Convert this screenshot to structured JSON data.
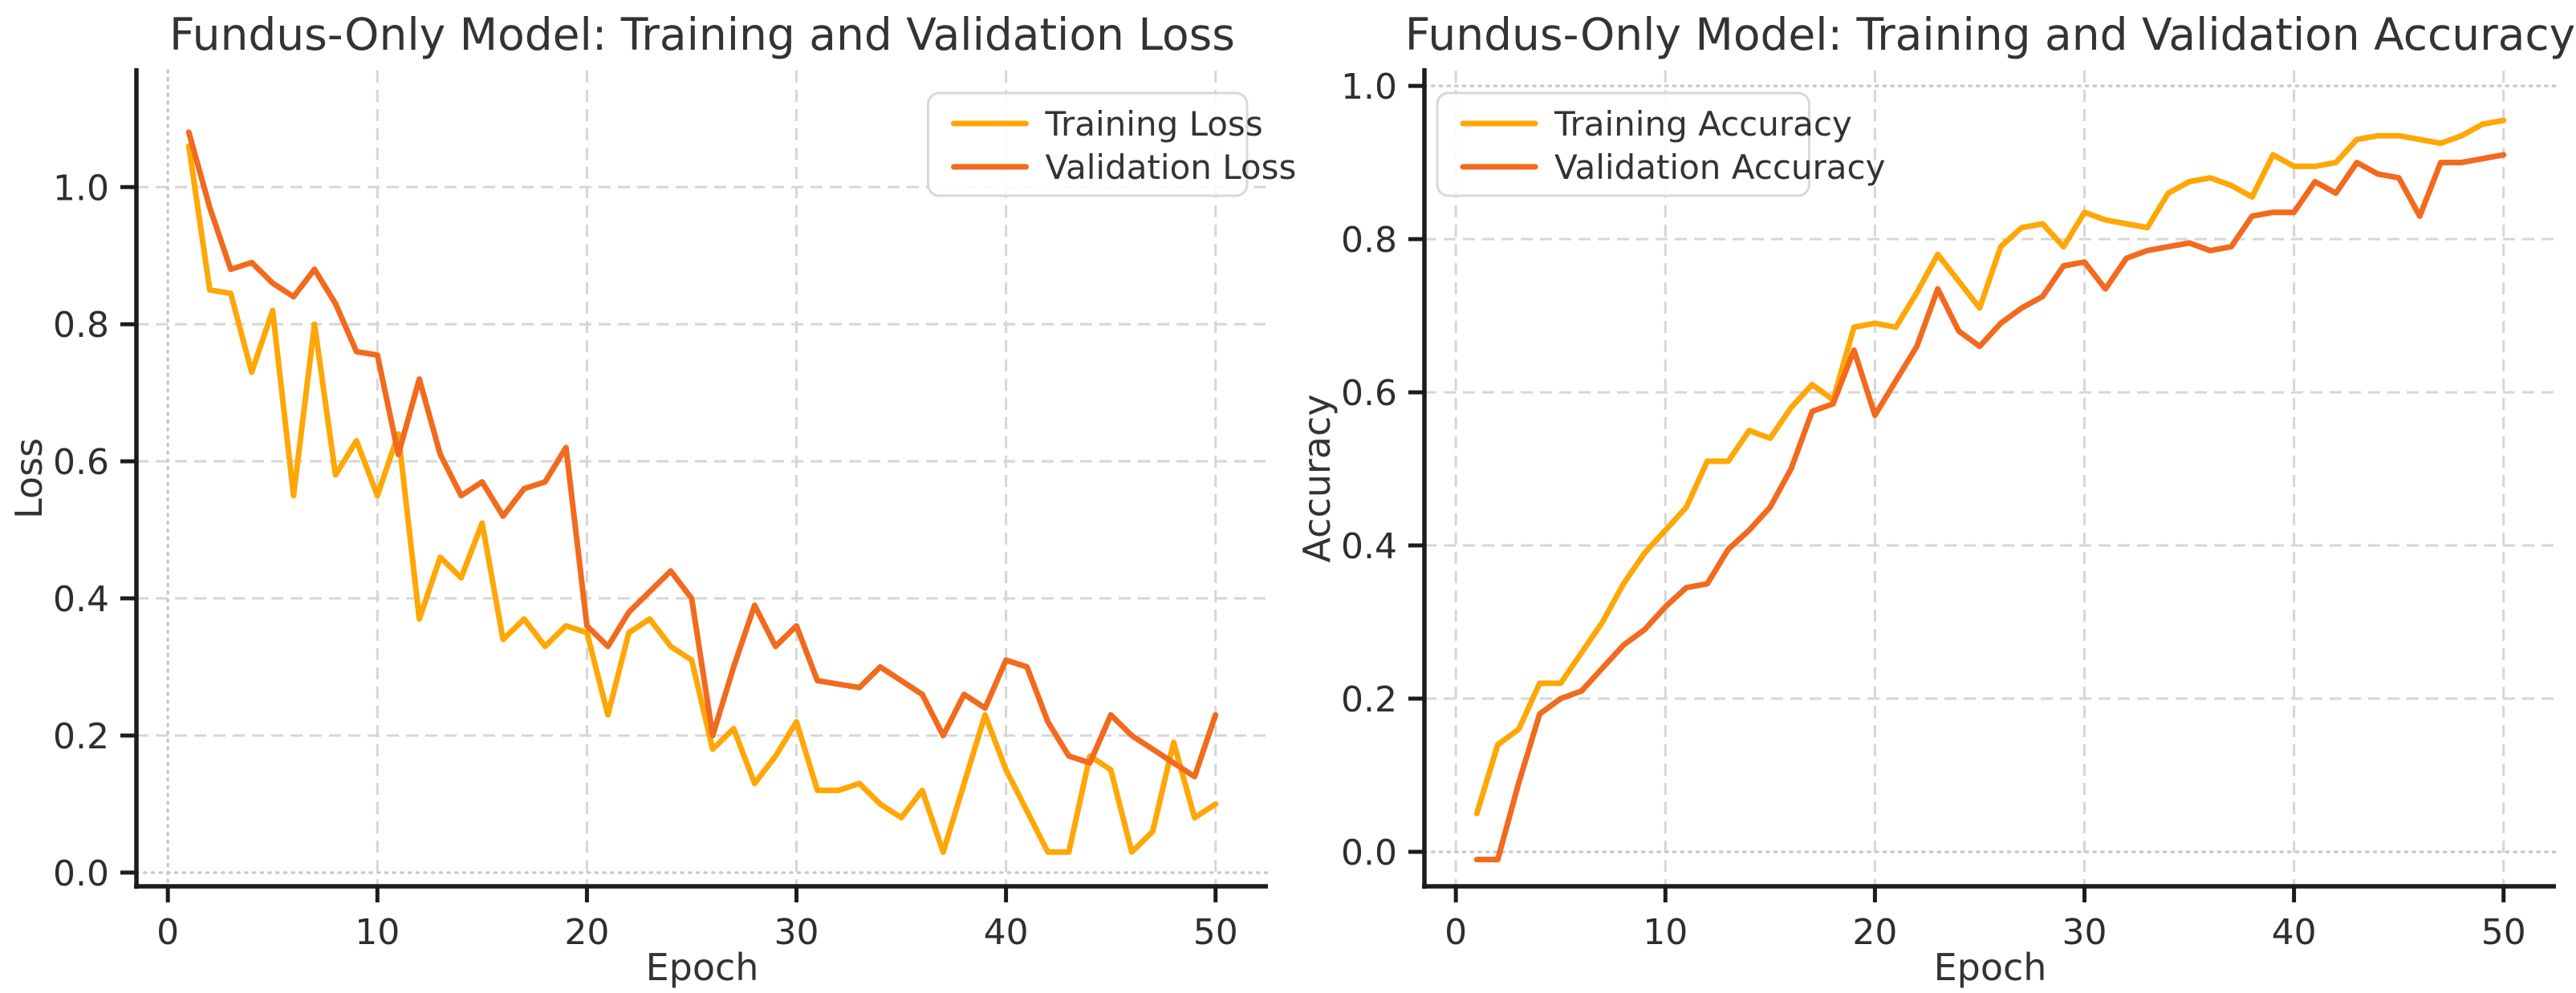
{
  "figure": {
    "background": "#ffffff"
  },
  "style": {
    "training_color": "#FFA707",
    "validation_color": "#F26A1E",
    "grid_color": "#d6d6d6",
    "guide_color": "#c9c9c9",
    "spine_color": "#1c1c1c",
    "text_color": "#333333",
    "tick_text_color": "#2e2e2e",
    "legend_border": "#d8d8d8",
    "legend_fill": "rgba(255,255,255,0.88)"
  },
  "chart_data": [
    {
      "type": "line",
      "title": "Fundus-Only Model: Training and Validation Loss",
      "xlabel": "Epoch",
      "ylabel": "Loss",
      "x_start": 1,
      "xlim": [
        -1.5,
        52.5
      ],
      "ylim": [
        -0.02,
        1.17
      ],
      "xticks": [
        0,
        10,
        20,
        30,
        40,
        50
      ],
      "xtick_labels": [
        "0",
        "10",
        "20",
        "30",
        "40",
        "50"
      ],
      "yticks": [
        0.0,
        0.2,
        0.4,
        0.6,
        0.8,
        1.0
      ],
      "ytick_labels": [
        "0.0",
        "0.2",
        "0.4",
        "0.6",
        "0.8",
        "1.0"
      ],
      "grid": true,
      "dashed_y": [
        0.2,
        0.4,
        0.6,
        0.8,
        1.0
      ],
      "dashed_x": [
        10,
        20,
        30,
        40,
        50
      ],
      "dotted_y": [
        0.0
      ],
      "dotted_x": [
        0
      ],
      "legend_loc": "upper-right",
      "series": [
        {
          "name": "Training Loss",
          "color_key": "training_color",
          "values": [
            1.06,
            0.85,
            0.845,
            0.73,
            0.82,
            0.55,
            0.8,
            0.58,
            0.63,
            0.55,
            0.64,
            0.37,
            0.46,
            0.43,
            0.51,
            0.34,
            0.37,
            0.33,
            0.36,
            0.35,
            0.23,
            0.35,
            0.37,
            0.33,
            0.31,
            0.18,
            0.21,
            0.13,
            0.17,
            0.22,
            0.12,
            0.12,
            0.13,
            0.1,
            0.08,
            0.12,
            0.03,
            0.13,
            0.23,
            0.15,
            0.09,
            0.03,
            0.03,
            0.17,
            0.15,
            0.03,
            0.06,
            0.19,
            0.08,
            0.1
          ]
        },
        {
          "name": "Validation Loss",
          "color_key": "validation_color",
          "values": [
            1.08,
            0.97,
            0.88,
            0.89,
            0.86,
            0.84,
            0.88,
            0.83,
            0.76,
            0.755,
            0.61,
            0.72,
            0.61,
            0.55,
            0.57,
            0.52,
            0.56,
            0.57,
            0.62,
            0.36,
            0.33,
            0.38,
            0.41,
            0.44,
            0.4,
            0.2,
            0.3,
            0.39,
            0.33,
            0.36,
            0.28,
            0.275,
            0.27,
            0.3,
            0.28,
            0.26,
            0.2,
            0.26,
            0.24,
            0.31,
            0.3,
            0.22,
            0.17,
            0.16,
            0.23,
            0.2,
            0.18,
            0.16,
            0.14,
            0.23
          ]
        }
      ]
    },
    {
      "type": "line",
      "title": "Fundus-Only Model: Training and Validation Accuracy",
      "xlabel": "Epoch",
      "ylabel": "Accuracy",
      "x_start": 1,
      "xlim": [
        -1.5,
        52.5
      ],
      "ylim": [
        -0.045,
        1.02
      ],
      "xticks": [
        0,
        10,
        20,
        30,
        40,
        50
      ],
      "xtick_labels": [
        "0",
        "10",
        "20",
        "30",
        "40",
        "50"
      ],
      "yticks": [
        0.0,
        0.2,
        0.4,
        0.6,
        0.8,
        1.0
      ],
      "ytick_labels": [
        "0.0",
        "0.2",
        "0.4",
        "0.6",
        "0.8",
        "1.0"
      ],
      "grid": true,
      "dashed_y": [
        0.2,
        0.4,
        0.6,
        0.8
      ],
      "dashed_x": [
        0,
        10,
        20,
        30,
        40,
        50
      ],
      "dotted_y": [
        0.0,
        1.0
      ],
      "dotted_x": [],
      "legend_loc": "upper-left",
      "series": [
        {
          "name": "Training Accuracy",
          "color_key": "training_color",
          "values": [
            0.05,
            0.14,
            0.16,
            0.22,
            0.22,
            0.26,
            0.3,
            0.35,
            0.39,
            0.42,
            0.45,
            0.51,
            0.51,
            0.55,
            0.54,
            0.58,
            0.61,
            0.59,
            0.685,
            0.69,
            0.685,
            0.73,
            0.78,
            0.745,
            0.71,
            0.79,
            0.815,
            0.82,
            0.79,
            0.835,
            0.825,
            0.82,
            0.815,
            0.86,
            0.875,
            0.88,
            0.87,
            0.855,
            0.91,
            0.895,
            0.895,
            0.9,
            0.93,
            0.935,
            0.935,
            0.93,
            0.925,
            0.935,
            0.95,
            0.955
          ]
        },
        {
          "name": "Validation Accuracy",
          "color_key": "validation_color",
          "values": [
            -0.01,
            -0.01,
            0.09,
            0.18,
            0.2,
            0.21,
            0.24,
            0.27,
            0.29,
            0.32,
            0.345,
            0.35,
            0.395,
            0.42,
            0.45,
            0.5,
            0.575,
            0.585,
            0.655,
            0.57,
            0.615,
            0.66,
            0.735,
            0.68,
            0.66,
            0.69,
            0.71,
            0.725,
            0.765,
            0.77,
            0.735,
            0.775,
            0.785,
            0.79,
            0.795,
            0.785,
            0.79,
            0.83,
            0.835,
            0.835,
            0.875,
            0.86,
            0.9,
            0.885,
            0.88,
            0.83,
            0.9,
            0.9,
            0.905,
            0.91
          ]
        }
      ]
    }
  ]
}
